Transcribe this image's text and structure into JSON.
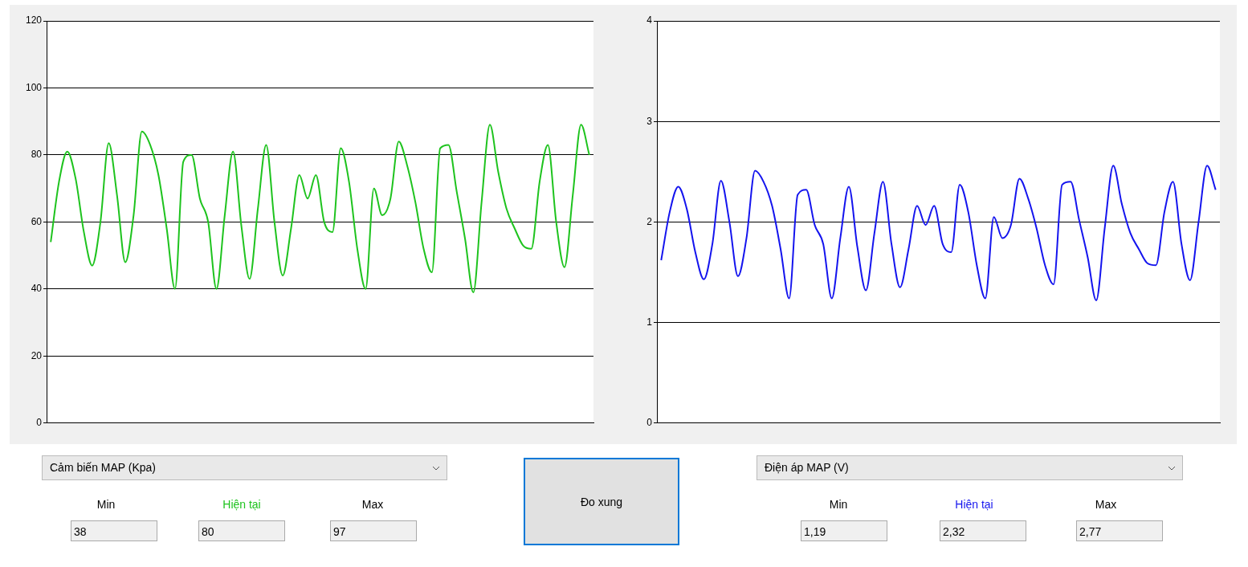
{
  "chart_data": [
    {
      "type": "line",
      "categories": [
        null,
        null,
        null,
        null,
        null,
        null,
        null,
        null,
        null,
        null,
        null,
        null,
        null,
        null,
        null,
        null,
        null,
        null,
        null,
        null,
        null,
        null,
        null,
        null,
        null,
        null,
        null,
        null,
        null,
        null,
        null,
        null,
        null,
        null,
        null,
        null,
        null,
        null,
        null,
        null,
        null,
        null,
        null,
        null,
        null,
        null,
        null,
        null,
        null,
        null,
        null,
        null,
        null,
        null,
        null,
        null,
        null,
        null,
        null,
        null,
        null,
        null,
        null,
        null,
        null,
        null
      ],
      "series": [
        {
          "color": "#1ec31e",
          "values": [
            54,
            72,
            81,
            73,
            57,
            47,
            60,
            83.5,
            68,
            48,
            62,
            87,
            83,
            74,
            58,
            40,
            78,
            80,
            67,
            60,
            40,
            62,
            81,
            59,
            43,
            64,
            83,
            60,
            44,
            58,
            74,
            67,
            74,
            60,
            57,
            82,
            72,
            52,
            40,
            70,
            62,
            67,
            84,
            77,
            66,
            52,
            45,
            82,
            83,
            69,
            55,
            39,
            66,
            89,
            75,
            64,
            58,
            53,
            52,
            72,
            83,
            60,
            46.5,
            68,
            89,
            80
          ]
        }
      ],
      "ylim": [
        0,
        120
      ],
      "yticks": [
        0,
        20,
        40,
        60,
        80,
        100,
        120
      ],
      "grid": "y",
      "tick_labels": "y",
      "annotations": [
        "Cảm biến MAP (Kpa)",
        "Min",
        "Hiện tại",
        "Max",
        "38",
        "80",
        "97"
      ]
    },
    {
      "type": "line",
      "categories": [
        null,
        null,
        null,
        null,
        null,
        null,
        null,
        null,
        null,
        null,
        null,
        null,
        null,
        null,
        null,
        null,
        null,
        null,
        null,
        null,
        null,
        null,
        null,
        null,
        null,
        null,
        null,
        null,
        null,
        null,
        null,
        null,
        null,
        null,
        null,
        null,
        null,
        null,
        null,
        null,
        null,
        null,
        null,
        null,
        null,
        null,
        null,
        null,
        null,
        null,
        null,
        null,
        null,
        null,
        null,
        null,
        null,
        null,
        null,
        null,
        null,
        null,
        null,
        null,
        null,
        null
      ],
      "series": [
        {
          "color": "#1414ee",
          "values": [
            1.62,
            2.1,
            2.35,
            2.13,
            1.7,
            1.43,
            1.78,
            2.41,
            2,
            1.46,
            1.84,
            2.51,
            2.4,
            2.16,
            1.73,
            1.24,
            2.27,
            2.32,
            1.97,
            1.78,
            1.24,
            1.84,
            2.35,
            1.75,
            1.32,
            1.89,
            2.4,
            1.78,
            1.35,
            1.73,
            2.16,
            1.97,
            2.16,
            1.78,
            1.7,
            2.37,
            2.1,
            1.57,
            1.24,
            2.05,
            1.84,
            1.97,
            2.43,
            2.24,
            1.94,
            1.57,
            1.38,
            2.37,
            2.4,
            2.02,
            1.65,
            1.22,
            1.94,
            2.56,
            2.18,
            1.89,
            1.73,
            1.59,
            1.57,
            2.1,
            2.4,
            1.78,
            1.42,
            2,
            2.56,
            2.32
          ]
        }
      ],
      "ylim": [
        0,
        4
      ],
      "yticks": [
        0,
        1,
        2,
        3,
        4
      ],
      "grid": "y",
      "tick_labels": "y",
      "annotations": [
        "Điện áp MAP (V)",
        "Min",
        "Hiện tại",
        "Max",
        "1,19",
        "2,32",
        "2,77"
      ]
    },
    {
      "type": "other",
      "annotations": [
        "Đo xung"
      ]
    }
  ]
}
